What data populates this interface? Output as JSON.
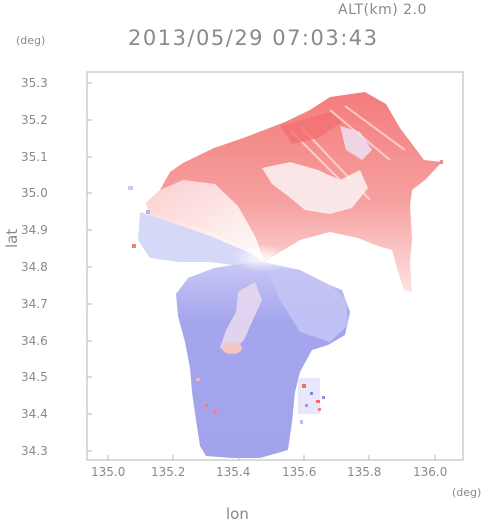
{
  "header": {
    "altitude": "ALT(km) 2.0",
    "datetime": "2013/05/29 07:03:43"
  },
  "axes": {
    "y_unit": "(deg)",
    "x_unit": "(deg)",
    "y_label": "lat",
    "x_label": "lon",
    "x_ticks": [
      "135.0",
      "135.2",
      "135.4",
      "135.6",
      "135.8",
      "136.0"
    ],
    "y_ticks": [
      "35.3",
      "35.2",
      "35.1",
      "35.0",
      "34.9",
      "34.8",
      "34.7",
      "34.6",
      "34.5",
      "34.4",
      "34.3"
    ]
  },
  "colors": {
    "receding": "#f58a8a",
    "approaching": "#8f8ff0",
    "neutral": "#ffffff",
    "frame": "#b5b5b5"
  }
}
